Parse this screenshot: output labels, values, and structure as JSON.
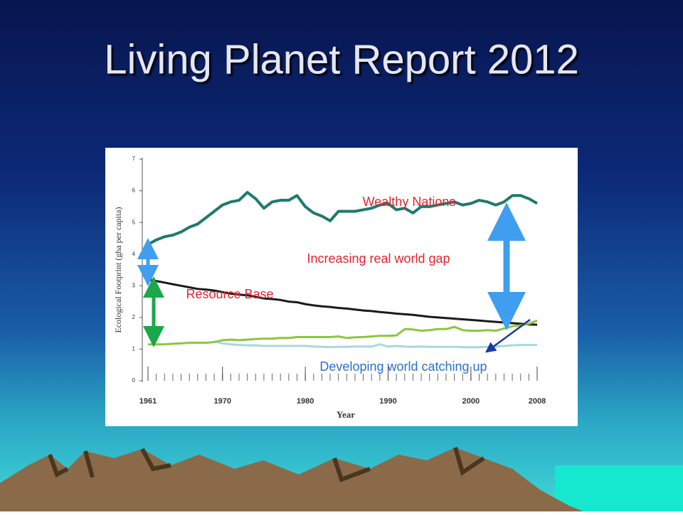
{
  "chart_data": {
    "type": "line",
    "title": "Living Planet Report 2012",
    "x_label": "Year",
    "y_label": "Ecological Footprint (gha per capita)",
    "x": [
      1961,
      1962,
      1963,
      1964,
      1965,
      1966,
      1967,
      1968,
      1969,
      1970,
      1971,
      1972,
      1973,
      1974,
      1975,
      1976,
      1977,
      1978,
      1979,
      1980,
      1981,
      1982,
      1983,
      1984,
      1985,
      1986,
      1987,
      1988,
      1989,
      1990,
      1991,
      1992,
      1993,
      1994,
      1995,
      1996,
      1997,
      1998,
      1999,
      2000,
      2001,
      2002,
      2003,
      2004,
      2005,
      2006,
      2007,
      2008
    ],
    "xlim": [
      1961,
      2008
    ],
    "xticks": [
      1961,
      1970,
      1980,
      1990,
      2000,
      2008
    ],
    "ylim": [
      0,
      7
    ],
    "yticks": [
      0,
      1,
      2,
      3,
      4,
      5,
      6,
      7
    ],
    "series": [
      {
        "color": "#1f7a6c",
        "values": [
          4.3,
          4.45,
          4.55,
          4.6,
          4.7,
          4.85,
          4.95,
          5.15,
          5.35,
          5.55,
          5.65,
          5.7,
          5.95,
          5.75,
          5.45,
          5.65,
          5.7,
          5.7,
          5.85,
          5.5,
          5.3,
          5.2,
          5.05,
          5.35,
          5.35,
          5.35,
          5.4,
          5.45,
          5.55,
          5.6,
          5.4,
          5.45,
          5.3,
          5.5,
          5.5,
          5.55,
          5.6,
          5.65,
          5.55,
          5.6,
          5.7,
          5.65,
          5.55,
          5.65,
          5.85,
          5.85,
          5.75,
          5.6
        ]
      },
      {
        "color": "#1a1a1a",
        "values": [
          3.2,
          3.15,
          3.1,
          3.05,
          3.0,
          2.95,
          2.9,
          2.88,
          2.85,
          2.8,
          2.75,
          2.72,
          2.7,
          2.65,
          2.6,
          2.58,
          2.55,
          2.5,
          2.48,
          2.42,
          2.38,
          2.35,
          2.33,
          2.3,
          2.28,
          2.25,
          2.22,
          2.2,
          2.17,
          2.15,
          2.12,
          2.1,
          2.08,
          2.05,
          2.02,
          2.0,
          1.98,
          1.96,
          1.94,
          1.92,
          1.9,
          1.88,
          1.86,
          1.84,
          1.82,
          1.8,
          1.78,
          1.77
        ]
      },
      {
        "color": "#a8d8e0",
        "values": [
          null,
          null,
          null,
          null,
          null,
          null,
          null,
          null,
          1.25,
          1.18,
          1.15,
          1.13,
          1.12,
          1.12,
          1.1,
          1.1,
          1.1,
          1.1,
          1.1,
          1.1,
          1.08,
          1.07,
          1.06,
          1.07,
          1.07,
          1.08,
          1.08,
          1.08,
          1.15,
          1.08,
          1.1,
          1.08,
          1.07,
          1.08,
          1.07,
          1.07,
          1.07,
          1.07,
          1.06,
          1.06,
          1.06,
          1.07,
          1.08,
          1.1,
          1.12,
          1.13,
          1.13,
          1.13
        ]
      },
      {
        "color": "#8dc63f",
        "values": [
          1.15,
          1.15,
          1.15,
          1.17,
          1.18,
          1.2,
          1.2,
          1.2,
          1.22,
          1.28,
          1.3,
          1.28,
          1.3,
          1.32,
          1.33,
          1.33,
          1.35,
          1.35,
          1.38,
          1.38,
          1.38,
          1.38,
          1.38,
          1.4,
          1.35,
          1.37,
          1.38,
          1.4,
          1.42,
          1.42,
          1.43,
          1.63,
          1.62,
          1.58,
          1.6,
          1.63,
          1.63,
          1.7,
          1.6,
          1.58,
          1.58,
          1.6,
          1.58,
          1.65,
          1.72,
          1.75,
          1.8,
          1.9
        ]
      }
    ],
    "annotations": [
      "Wealthy Nations",
      "Increasing real world gap",
      "Resource Base",
      "Developing world catching up"
    ]
  }
}
